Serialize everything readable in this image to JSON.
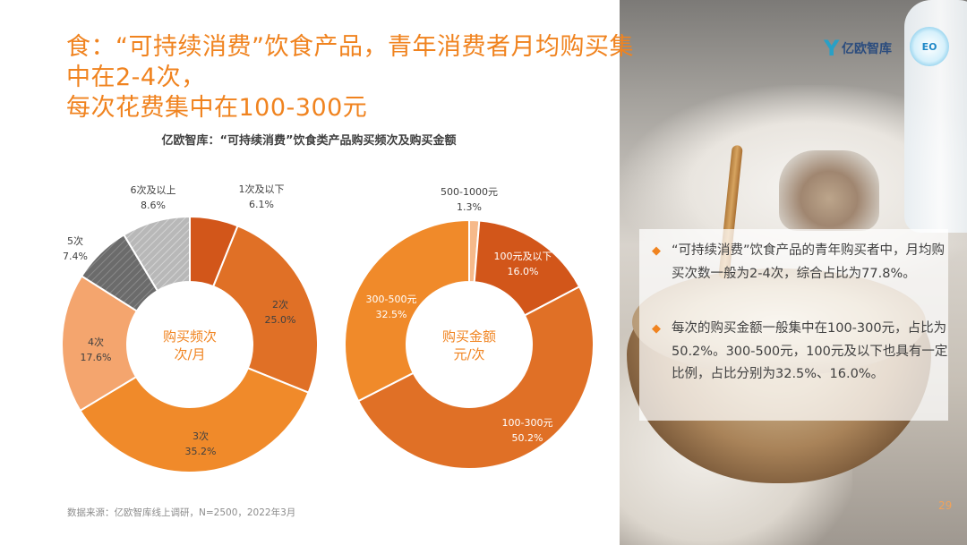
{
  "header": {
    "title_line1": "食：“可持续消费”饮食产品，青年消费者月均购买集中在2-4次，",
    "title_line2": "每次花费集中在100-300元"
  },
  "brand": {
    "logo_mark": "Y",
    "logo_text": "亿欧智库",
    "badge_text": "EO"
  },
  "chart_title": "亿欧智库：“可持续消费”饮食类产品购买频次及购买金额",
  "source": "数据来源：亿欧智库线上调研，N=2500，2022年3月",
  "page_number": "29",
  "bullets": [
    "“可持续消费”饮食产品的青年购买者中，月均购买次数一般为2-4次，综合占比为77.8%。",
    "每次的购买金额一般集中在100-300元，占比为50.2%。300-500元，100元及以下也具有一定比例，占比分别为32.5%、16.0%。"
  ],
  "colors": {
    "accent": "#f0831f"
  },
  "chart_data": [
    {
      "type": "pie",
      "center_label": [
        "购买频次",
        "次/月"
      ],
      "labels": [
        "1次及以下",
        "2次",
        "3次",
        "4次",
        "5次",
        "6次及以上"
      ],
      "values": [
        6.1,
        25.0,
        35.2,
        17.6,
        7.4,
        8.6
      ],
      "value_labels": [
        "6.1%",
        "25.0%",
        "35.2%",
        "17.6%",
        "7.4%",
        "8.6%"
      ],
      "colors": [
        "#d2561a",
        "#e07026",
        "#f08a2a",
        "#f4a56e",
        "#6f6f6f",
        "#bfbfbf"
      ],
      "hatched": [
        false,
        false,
        false,
        false,
        true,
        true
      ]
    },
    {
      "type": "pie",
      "center_label": [
        "购买金额",
        "元/次"
      ],
      "labels": [
        "500-1000元",
        "100元及以下",
        "100-300元",
        "300-500元"
      ],
      "values": [
        1.3,
        16.0,
        50.2,
        32.5
      ],
      "value_labels": [
        "1.3%",
        "16.0%",
        "50.2%",
        "32.5%"
      ],
      "colors": [
        "#f6b98a",
        "#d2561a",
        "#e07026",
        "#f08a2a"
      ],
      "hatched": [
        false,
        false,
        false,
        false
      ]
    }
  ]
}
